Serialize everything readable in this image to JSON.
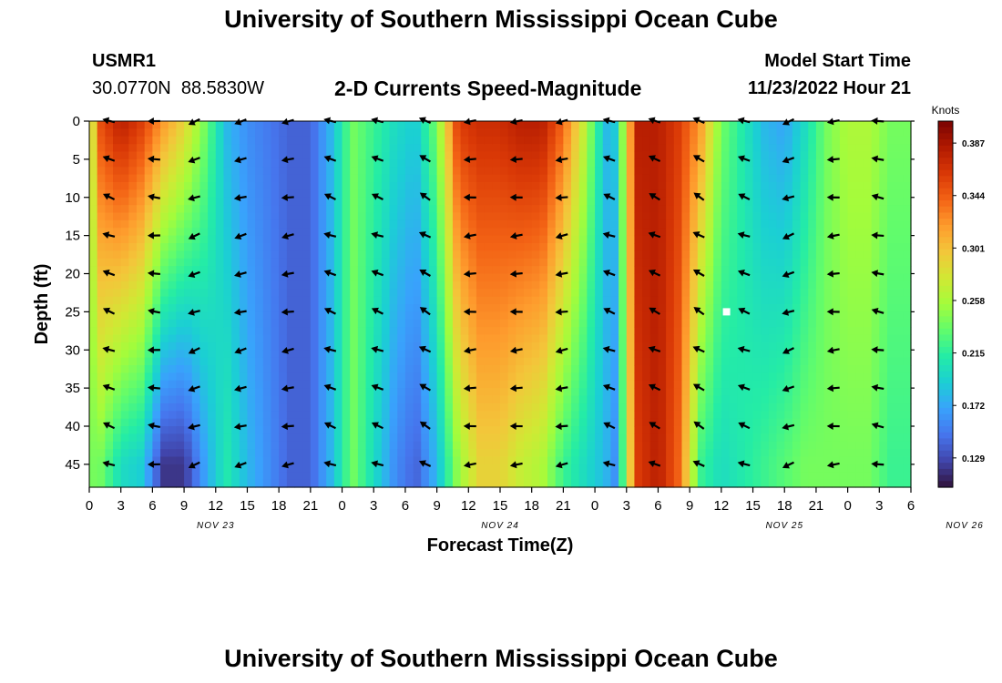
{
  "header": {
    "title": "University of Southern Mississippi Ocean Cube",
    "station_id": "USMR1",
    "coordinates": "30.0770N  88.5830W",
    "chart_title": "2-D Currents Speed-Magnitude",
    "model_start_label": "Model Start Time",
    "model_start_value": "11/23/2022 Hour 21"
  },
  "footer": {
    "title": "University of Southern Mississippi Ocean Cube"
  },
  "chart_data": {
    "type": "heatmap",
    "title": "2-D Currents Speed-Magnitude",
    "xlabel": "Forecast Time(Z)",
    "ylabel": "Depth (ft)",
    "x_tick_labels": [
      "0",
      "3",
      "6",
      "9",
      "12",
      "15",
      "18",
      "21",
      "0",
      "3",
      "6",
      "9",
      "12",
      "15",
      "18",
      "21",
      "0",
      "3",
      "6",
      "9",
      "12",
      "15",
      "18",
      "21",
      "0",
      "3",
      "6"
    ],
    "date_labels": [
      {
        "label": "NOV 23",
        "tick_index": 4
      },
      {
        "label": "NOV 24",
        "tick_index": 13
      },
      {
        "label": "NOV 25",
        "tick_index": 22
      },
      {
        "label": "NOV 26",
        "tick_index": 27.7
      }
    ],
    "y_ticks": [
      0,
      5,
      10,
      15,
      20,
      25,
      30,
      35,
      40,
      45
    ],
    "ylim": [
      0,
      48
    ],
    "x_hours_range": [
      0,
      78
    ],
    "colorbar": {
      "label": "Knots",
      "ticks": [
        "0.387",
        "0.344",
        "0.301",
        "0.258",
        "0.215",
        "0.172",
        "0.129"
      ],
      "tick_values": [
        0.387,
        0.344,
        0.301,
        0.258,
        0.215,
        0.172,
        0.129
      ],
      "range": [
        0.105,
        0.405
      ],
      "colors": [
        "#30123b",
        "#4145ab",
        "#4675ed",
        "#39a2fc",
        "#1bcfd4",
        "#24eca6",
        "#61fc6c",
        "#a4fc3b",
        "#d1e834",
        "#f3c63a",
        "#fe9b2d",
        "#f36315",
        "#d93806",
        "#b11901",
        "#7a0402"
      ]
    },
    "speed_knots_time_profile": [
      {
        "hour": 0,
        "surface": 0.25,
        "bottom": 0.24
      },
      {
        "hour": 1,
        "surface": 0.35,
        "bottom": 0.24
      },
      {
        "hour": 3,
        "surface": 0.38,
        "bottom": 0.2
      },
      {
        "hour": 5,
        "surface": 0.36,
        "bottom": 0.19
      },
      {
        "hour": 7,
        "surface": 0.32,
        "bottom": 0.12
      },
      {
        "hour": 9,
        "surface": 0.29,
        "bottom": 0.12
      },
      {
        "hour": 11,
        "surface": 0.24,
        "bottom": 0.17
      },
      {
        "hour": 13,
        "surface": 0.18,
        "bottom": 0.21
      },
      {
        "hour": 15,
        "surface": 0.16,
        "bottom": 0.18
      },
      {
        "hour": 17,
        "surface": 0.15,
        "bottom": 0.16
      },
      {
        "hour": 19,
        "surface": 0.14,
        "bottom": 0.14
      },
      {
        "hour": 21,
        "surface": 0.14,
        "bottom": 0.14
      },
      {
        "hour": 23,
        "surface": 0.18,
        "bottom": 0.18
      },
      {
        "hour": 25,
        "surface": 0.24,
        "bottom": 0.24
      },
      {
        "hour": 27,
        "surface": 0.22,
        "bottom": 0.2
      },
      {
        "hour": 29,
        "surface": 0.2,
        "bottom": 0.16
      },
      {
        "hour": 31,
        "surface": 0.19,
        "bottom": 0.14
      },
      {
        "hour": 33,
        "surface": 0.24,
        "bottom": 0.18
      },
      {
        "hour": 35,
        "surface": 0.36,
        "bottom": 0.25
      },
      {
        "hour": 37,
        "surface": 0.37,
        "bottom": 0.29
      },
      {
        "hour": 39,
        "surface": 0.37,
        "bottom": 0.29
      },
      {
        "hour": 41,
        "surface": 0.38,
        "bottom": 0.27
      },
      {
        "hour": 43,
        "surface": 0.38,
        "bottom": 0.26
      },
      {
        "hour": 45,
        "surface": 0.34,
        "bottom": 0.22
      },
      {
        "hour": 47,
        "surface": 0.27,
        "bottom": 0.2
      },
      {
        "hour": 49,
        "surface": 0.18,
        "bottom": 0.18
      },
      {
        "hour": 50,
        "surface": 0.19,
        "bottom": 0.16
      },
      {
        "hour": 52,
        "surface": 0.38,
        "bottom": 0.36
      },
      {
        "hour": 54,
        "surface": 0.38,
        "bottom": 0.38
      },
      {
        "hour": 56,
        "surface": 0.36,
        "bottom": 0.34
      },
      {
        "hour": 58,
        "surface": 0.32,
        "bottom": 0.22
      },
      {
        "hour": 60,
        "surface": 0.24,
        "bottom": 0.2
      },
      {
        "hour": 62,
        "surface": 0.21,
        "bottom": 0.21
      },
      {
        "hour": 64,
        "surface": 0.18,
        "bottom": 0.22
      },
      {
        "hour": 66,
        "surface": 0.17,
        "bottom": 0.23
      },
      {
        "hour": 68,
        "surface": 0.2,
        "bottom": 0.24
      },
      {
        "hour": 70,
        "surface": 0.24,
        "bottom": 0.24
      },
      {
        "hour": 72,
        "surface": 0.26,
        "bottom": 0.24
      },
      {
        "hour": 74,
        "surface": 0.26,
        "bottom": 0.24
      },
      {
        "hour": 76,
        "surface": 0.24,
        "bottom": 0.22
      },
      {
        "hour": 78,
        "surface": 0.24,
        "bottom": 0.22
      }
    ],
    "arrow_times_hours": [
      2,
      6.3,
      10.1,
      14.5,
      19,
      23,
      27.5,
      32,
      36.3,
      40.7,
      45,
      49.5,
      53.8,
      58,
      62.3,
      66.5,
      70.8,
      75
    ],
    "arrow_depths_ft": [
      0,
      5,
      10,
      15,
      20,
      25,
      30,
      35,
      40,
      45
    ],
    "arrow_direction_deg_by_time": [
      200,
      185,
      160,
      165,
      170,
      200,
      200,
      210,
      175,
      175,
      170,
      200,
      205,
      210,
      200,
      160,
      175,
      190
    ],
    "marker": {
      "hour": 60.5,
      "depth": 25
    }
  }
}
